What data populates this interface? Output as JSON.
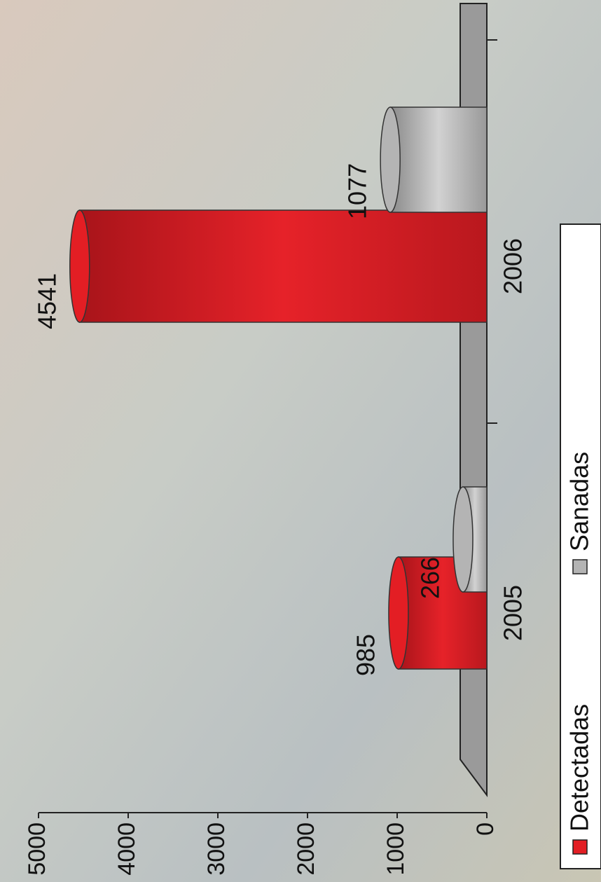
{
  "chart_data": {
    "type": "bar",
    "categories": [
      "2005",
      "2006"
    ],
    "series": [
      {
        "name": "Detectadas",
        "color": "#e31e24",
        "values": [
          985,
          4541
        ]
      },
      {
        "name": "Sanadas",
        "color": "#b4b4b4",
        "values": [
          266,
          1077
        ]
      }
    ],
    "ylim": [
      0,
      5000
    ],
    "yticks": [
      0,
      1000,
      2000,
      3000,
      4000,
      5000
    ],
    "legend": "bottom"
  }
}
